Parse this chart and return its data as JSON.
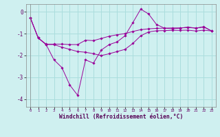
{
  "bg_color": "#cff0f0",
  "line_color": "#990099",
  "grid_color": "#aadddd",
  "xlabel": "Windchill (Refroidissement éolien,°C)",
  "xlim": [
    -0.5,
    23.5
  ],
  "ylim": [
    -4.35,
    0.35
  ],
  "yticks": [
    0,
    -1,
    -2,
    -3,
    -4
  ],
  "xticks": [
    0,
    1,
    2,
    3,
    4,
    5,
    6,
    7,
    8,
    9,
    10,
    11,
    12,
    13,
    14,
    15,
    16,
    17,
    18,
    19,
    20,
    21,
    22,
    23
  ],
  "line1_x": [
    0,
    1,
    2,
    3,
    4,
    5,
    6,
    7,
    8,
    9,
    10,
    11,
    12,
    13,
    14,
    15,
    16,
    17,
    18,
    19,
    20,
    21,
    22,
    23
  ],
  "line1_y": [
    -0.28,
    -1.2,
    -1.5,
    -2.2,
    -2.55,
    -3.35,
    -3.82,
    -2.2,
    -2.35,
    -1.75,
    -1.5,
    -1.38,
    -1.1,
    -0.5,
    0.12,
    -0.1,
    -0.58,
    -0.75,
    -0.78,
    -0.75,
    -0.7,
    -0.75,
    -0.68,
    -0.88
  ],
  "line2_x": [
    0,
    1,
    2,
    3,
    4,
    5,
    6,
    7,
    8,
    9,
    10,
    11,
    12,
    13,
    14,
    15,
    16,
    17,
    18,
    19,
    20,
    21,
    22,
    23
  ],
  "line2_y": [
    -0.28,
    -1.2,
    -1.48,
    -1.48,
    -1.48,
    -1.5,
    -1.5,
    -1.3,
    -1.32,
    -1.22,
    -1.12,
    -1.05,
    -1.0,
    -0.9,
    -0.82,
    -0.78,
    -0.76,
    -0.75,
    -0.74,
    -0.74,
    -0.72,
    -0.75,
    -0.7,
    -0.88
  ],
  "line3_x": [
    0,
    1,
    2,
    3,
    4,
    5,
    6,
    7,
    8,
    9,
    10,
    11,
    12,
    13,
    14,
    15,
    16,
    17,
    18,
    19,
    20,
    21,
    22,
    23
  ],
  "line3_y": [
    -0.28,
    -1.2,
    -1.5,
    -1.5,
    -1.62,
    -1.72,
    -1.82,
    -1.85,
    -1.92,
    -2.0,
    -1.92,
    -1.82,
    -1.72,
    -1.45,
    -1.1,
    -0.92,
    -0.87,
    -0.86,
    -0.85,
    -0.85,
    -0.84,
    -0.88,
    -0.84,
    -0.88
  ]
}
